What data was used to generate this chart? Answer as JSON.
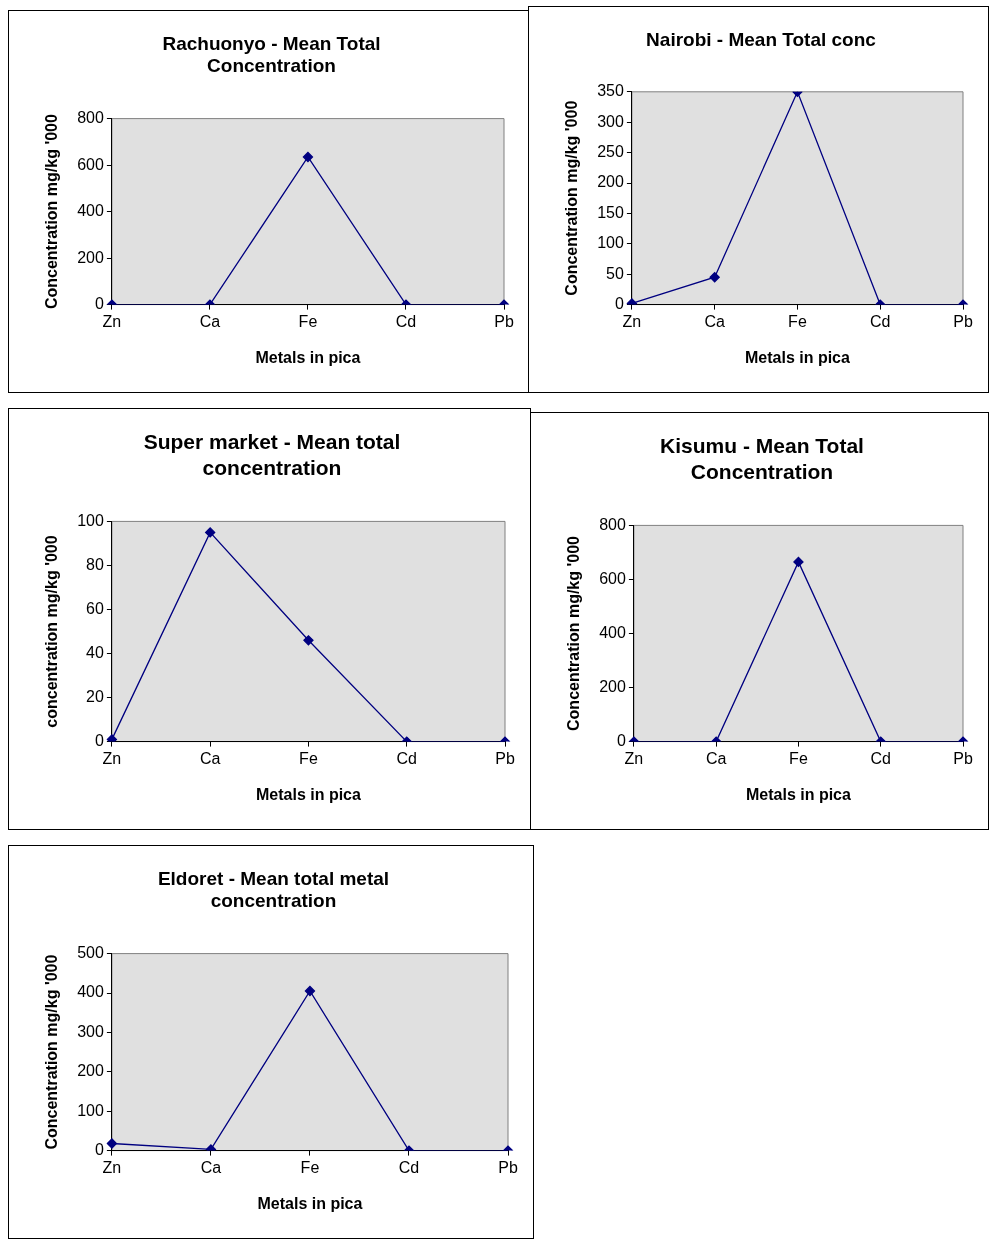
{
  "chart_data": [
    {
      "type": "line",
      "title": "Rachuonyo - Mean Total Concentration",
      "xlabel": "Metals in pica",
      "ylabel": "Concentration mg/kg '000",
      "categories": [
        "Zn",
        "Ca",
        "Fe",
        "Cd",
        "Pb"
      ],
      "series": [
        {
          "color": "#000080",
          "values": [
            0,
            0,
            635,
            0,
            0
          ]
        }
      ],
      "ylim": [
        0,
        800
      ],
      "yticks": [
        0,
        200,
        400,
        600,
        800
      ],
      "marker": "diamond",
      "grid": false,
      "legend": false
    },
    {
      "type": "line",
      "title": "Nairobi - Mean Total conc",
      "xlabel": "Metals in pica",
      "ylabel": "Concentration mg/kg '000",
      "categories": [
        "Zn",
        "Ca",
        "Fe",
        "Cd",
        "Pb"
      ],
      "series": [
        {
          "color": "#000080",
          "values": [
            2,
            45,
            350,
            0,
            0
          ]
        }
      ],
      "ylim": [
        0,
        350
      ],
      "yticks": [
        0,
        50,
        100,
        150,
        200,
        250,
        300,
        350
      ],
      "marker": "diamond",
      "grid": false,
      "legend": false
    },
    {
      "type": "line",
      "title": "Super market - Mean total concentration",
      "xlabel": "Metals in pica",
      "ylabel": "concentration mg/kg '000",
      "categories": [
        "Zn",
        "Ca",
        "Fe",
        "Cd",
        "Pb"
      ],
      "series": [
        {
          "color": "#000080",
          "values": [
            1,
            95,
            46,
            0,
            0
          ]
        }
      ],
      "ylim": [
        0,
        100
      ],
      "yticks": [
        0,
        20,
        40,
        60,
        80,
        100
      ],
      "marker": "diamond",
      "grid": false,
      "legend": false
    },
    {
      "type": "line",
      "title": "Kisumu - Mean Total Concentration",
      "xlabel": "Metals in pica",
      "ylabel": "Concentration mg/kg '000",
      "categories": [
        "Zn",
        "Ca",
        "Fe",
        "Cd",
        "Pb"
      ],
      "series": [
        {
          "color": "#000080",
          "values": [
            0,
            0,
            665,
            0,
            0
          ]
        }
      ],
      "ylim": [
        0,
        800
      ],
      "yticks": [
        0,
        200,
        400,
        600,
        800
      ],
      "marker": "diamond",
      "grid": false,
      "legend": false
    },
    {
      "type": "line",
      "title": "Eldoret - Mean total metal concentration",
      "xlabel": "Metals in pica",
      "ylabel": "Concentration mg/kg '000",
      "categories": [
        "Zn",
        "Ca",
        "Fe",
        "Cd",
        "Pb"
      ],
      "series": [
        {
          "color": "#000080",
          "values": [
            18,
            3,
            405,
            0,
            0
          ]
        }
      ],
      "ylim": [
        0,
        500
      ],
      "yticks": [
        0,
        100,
        200,
        300,
        400,
        500
      ],
      "marker": "diamond",
      "grid": false,
      "legend": false
    }
  ]
}
